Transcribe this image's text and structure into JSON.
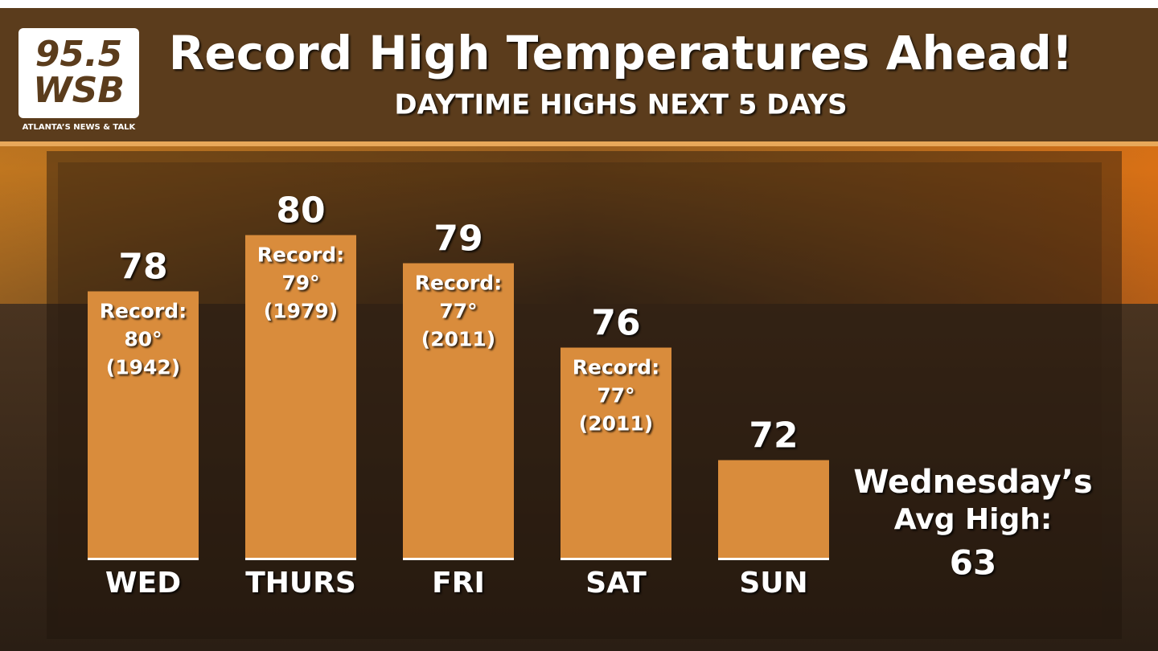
{
  "chart_data": {
    "type": "bar",
    "title": "Record High Temperatures Ahead!",
    "subtitle": "DAYTIME HIGHS NEXT 5 DAYS",
    "logo": {
      "number": "95.5",
      "name": "WSB",
      "tagline": "ATLANTA’S NEWS & TALK"
    },
    "categories": [
      "WED",
      "THURS",
      "FRI",
      "SAT",
      "SUN"
    ],
    "values": [
      78,
      80,
      79,
      76,
      72
    ],
    "color": "#d98c3c",
    "ylim": [
      68.5,
      82
    ],
    "records": [
      {
        "label": "Record:",
        "temp": "80°",
        "year": "(1942)"
      },
      {
        "label": "Record:",
        "temp": "79°",
        "year": "(1979)"
      },
      {
        "label": "Record:",
        "temp": "77°",
        "year": "(2011)"
      },
      {
        "label": "Record:",
        "temp": "77°",
        "year": "(2011)"
      },
      null
    ],
    "avg_note": {
      "lines": [
        "Wednesday’s",
        "Avg High:"
      ],
      "value": 63
    }
  }
}
